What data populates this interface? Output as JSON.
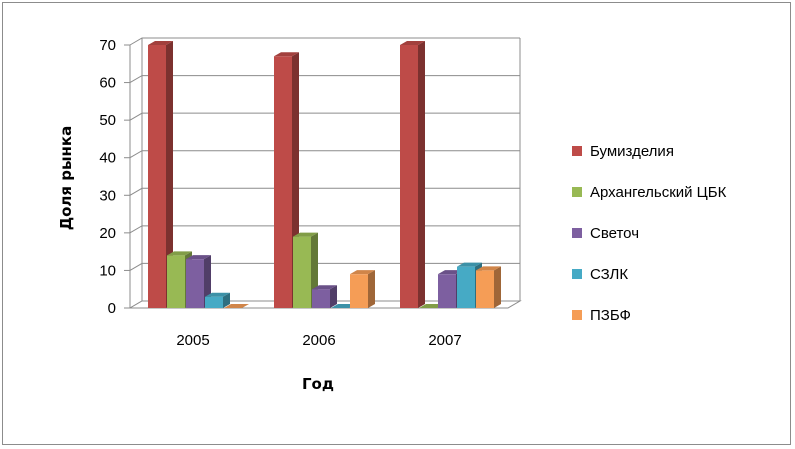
{
  "chart_data": {
    "type": "bar",
    "categories": [
      "2005",
      "2006",
      "2007"
    ],
    "series": [
      {
        "name": "Бумизделия",
        "values": [
          70,
          67,
          70
        ],
        "color": "#be4b48"
      },
      {
        "name": "Архангельский ЦБК",
        "values": [
          14,
          19,
          0
        ],
        "color": "#98b954"
      },
      {
        "name": "Светоч",
        "values": [
          13,
          5,
          9
        ],
        "color": "#7d5fa0"
      },
      {
        "name": "СЗЛК",
        "values": [
          3,
          0,
          11
        ],
        "color": "#46aac5"
      },
      {
        "name": "ПЗБФ",
        "values": [
          0,
          9,
          10
        ],
        "color": "#f59d56"
      }
    ],
    "title": "",
    "xlabel": "Год",
    "ylabel": "Доля рынка",
    "ylim": [
      0,
      70
    ],
    "yticks": [
      0,
      10,
      20,
      30,
      40,
      50,
      60,
      70
    ],
    "grid": true,
    "legend": "right",
    "style": "3d-clustered-column"
  }
}
